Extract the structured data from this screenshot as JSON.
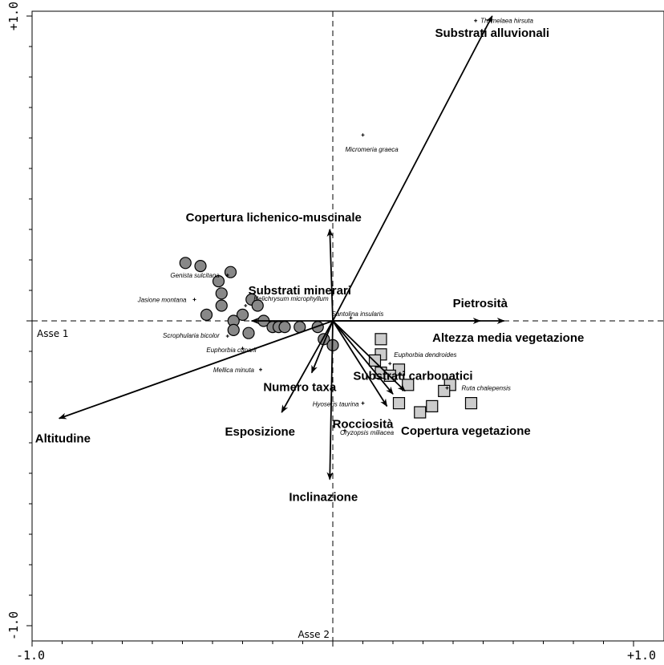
{
  "chart_data": {
    "type": "scatter",
    "x_ticks": {
      "min_label": "-1.0",
      "max_label": "+1.0"
    },
    "y_ticks": {
      "min_label": "-1.0",
      "max_label": "+1.0"
    },
    "xlim": [
      -1.0,
      1.0
    ],
    "ylim": [
      -1.0,
      1.0
    ],
    "axis1_label": "Asse 1",
    "axis2_label": "Asse 2",
    "vectors": [
      {
        "label": "Substrati alluvionali",
        "x": 0.53,
        "y": 1.0
      },
      {
        "label": "Copertura lichenico-muscinale",
        "x": -0.01,
        "y": 0.3
      },
      {
        "label": "Substrati minerari",
        "x": -0.27,
        "y": 0.0
      },
      {
        "label": "Pietrosità",
        "x": 0.49,
        "y": 0.0
      },
      {
        "label": "Altezza media vegetazione",
        "x": 0.57,
        "y": 0.0
      },
      {
        "label": "Substrati carbonatici",
        "x": 0.24,
        "y": -0.23
      },
      {
        "label": "Numero taxa",
        "x": -0.07,
        "y": -0.17
      },
      {
        "label": "Esposizione",
        "x": -0.17,
        "y": -0.3
      },
      {
        "label": "Rocciosità",
        "x": 0.18,
        "y": -0.28
      },
      {
        "label": "Copertura vegetazione",
        "x": 0.2,
        "y": -0.24
      },
      {
        "label": "Altitudine",
        "x": -0.91,
        "y": -0.32
      },
      {
        "label": "Inclinazione",
        "x": -0.01,
        "y": -0.52
      }
    ],
    "species": [
      {
        "label": "Thymelaea hirsuta",
        "x": 0.475,
        "y": 0.985
      },
      {
        "label": "Micromeria graeca",
        "x": 0.1,
        "y": 0.61
      },
      {
        "label": "Genista sulcitana",
        "x": -0.35,
        "y": 0.15
      },
      {
        "label": "Jasione montana",
        "x": -0.46,
        "y": 0.07
      },
      {
        "label": "Helichrysum microphyllum",
        "x": -0.29,
        "y": 0.05
      },
      {
        "label": "Santolina insularis",
        "x": 0.06,
        "y": 0.01
      },
      {
        "label": "Scrophularia bicolor",
        "x": -0.35,
        "y": -0.05
      },
      {
        "label": "Euphorbia cuparii",
        "x": -0.3,
        "y": -0.09
      },
      {
        "label": "Mellica minuta",
        "x": -0.24,
        "y": -0.16
      },
      {
        "label": "Euphorbia dendroides",
        "x": 0.19,
        "y": -0.14
      },
      {
        "label": "Ruta chalepensis",
        "x": 0.38,
        "y": -0.22
      },
      {
        "label": "Hyoseris taurina",
        "x": 0.1,
        "y": -0.27
      },
      {
        "label": "Oryzopsis miliacea",
        "x": 0.04,
        "y": -0.36
      }
    ],
    "series": [
      {
        "marker": "circle",
        "color": "#888888",
        "points": [
          [
            -0.49,
            0.19
          ],
          [
            -0.44,
            0.18
          ],
          [
            -0.34,
            0.16
          ],
          [
            -0.38,
            0.13
          ],
          [
            -0.37,
            0.09
          ],
          [
            -0.27,
            0.07
          ],
          [
            -0.25,
            0.05
          ],
          [
            -0.37,
            0.05
          ],
          [
            -0.42,
            0.02
          ],
          [
            -0.3,
            0.02
          ],
          [
            -0.33,
            0.0
          ],
          [
            -0.23,
            0.0
          ],
          [
            -0.2,
            -0.02
          ],
          [
            -0.18,
            -0.02
          ],
          [
            -0.16,
            -0.02
          ],
          [
            -0.33,
            -0.03
          ],
          [
            -0.28,
            -0.04
          ],
          [
            -0.05,
            -0.02
          ],
          [
            -0.11,
            -0.02
          ],
          [
            -0.03,
            -0.06
          ],
          [
            0.0,
            -0.08
          ]
        ]
      },
      {
        "marker": "square",
        "color": "#cccccc",
        "points": [
          [
            0.16,
            -0.06
          ],
          [
            0.16,
            -0.11
          ],
          [
            0.14,
            -0.13
          ],
          [
            0.22,
            -0.16
          ],
          [
            0.16,
            -0.17
          ],
          [
            0.19,
            -0.18
          ],
          [
            0.25,
            -0.21
          ],
          [
            0.39,
            -0.21
          ],
          [
            0.37,
            -0.23
          ],
          [
            0.46,
            -0.27
          ],
          [
            0.22,
            -0.27
          ],
          [
            0.33,
            -0.28
          ],
          [
            0.29,
            -0.3
          ]
        ]
      }
    ]
  }
}
